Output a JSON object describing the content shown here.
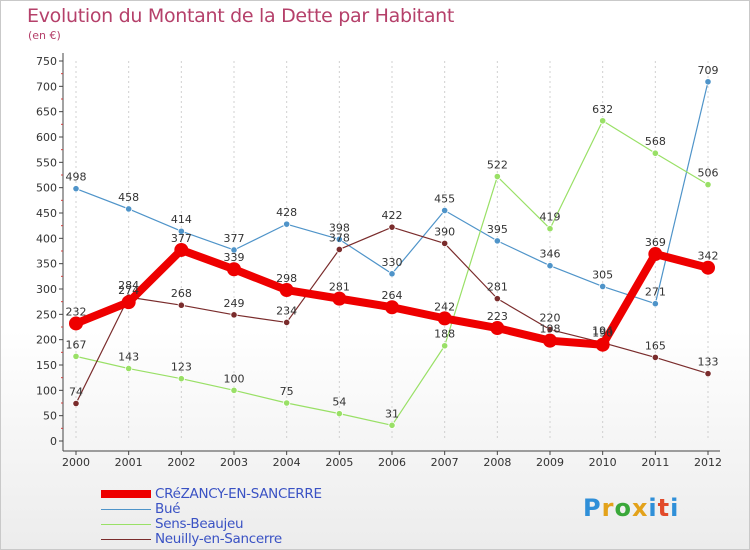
{
  "header": {
    "title": "Evolution du Montant de la Dette par Habitant",
    "unit": "(en €)"
  },
  "logo": {
    "text": "Proxiti",
    "colors": [
      "#2f8fd8",
      "#e3a21a",
      "#3aa83a",
      "#e3a21a",
      "#2f8fd8",
      "#e24a2a",
      "#2f8fd8"
    ]
  },
  "chart_data": {
    "type": "line",
    "title": "Evolution du Montant de la Dette par Habitant",
    "ylabel": "(en €)",
    "xlabel": "",
    "x": [
      "2000",
      "2001",
      "2002",
      "2003",
      "2004",
      "2005",
      "2006",
      "2007",
      "2008",
      "2009",
      "2010",
      "2011",
      "2012"
    ],
    "yticks": [
      "0",
      "50",
      "100",
      "150",
      "200",
      "250",
      "300",
      "350",
      "400",
      "450",
      "500",
      "550",
      "600",
      "650",
      "700",
      "750"
    ],
    "ylim": [
      0,
      750
    ],
    "grid": "vertical dashed",
    "legend_position": "bottom-left",
    "series": [
      {
        "name": "CRéZANCY-EN-SANCERRE",
        "color": "#ee0000",
        "bold": true,
        "values": [
          232,
          274,
          377,
          339,
          298,
          281,
          264,
          242,
          223,
          198,
          190,
          369,
          342
        ]
      },
      {
        "name": "Bué",
        "color": "#4f94c9",
        "bold": false,
        "values": [
          498,
          458,
          414,
          377,
          428,
          398,
          330,
          455,
          395,
          346,
          305,
          271,
          709
        ]
      },
      {
        "name": "Sens-Beaujeu",
        "color": "#99e066",
        "bold": false,
        "values": [
          167,
          143,
          123,
          100,
          75,
          54,
          31,
          188,
          522,
          419,
          632,
          568,
          506
        ]
      },
      {
        "name": "Neuilly-en-Sancerre",
        "color": "#7a2c2c",
        "bold": false,
        "values": [
          74,
          284,
          268,
          249,
          234,
          378,
          422,
          390,
          281,
          220,
          194,
          165,
          133
        ]
      }
    ]
  }
}
